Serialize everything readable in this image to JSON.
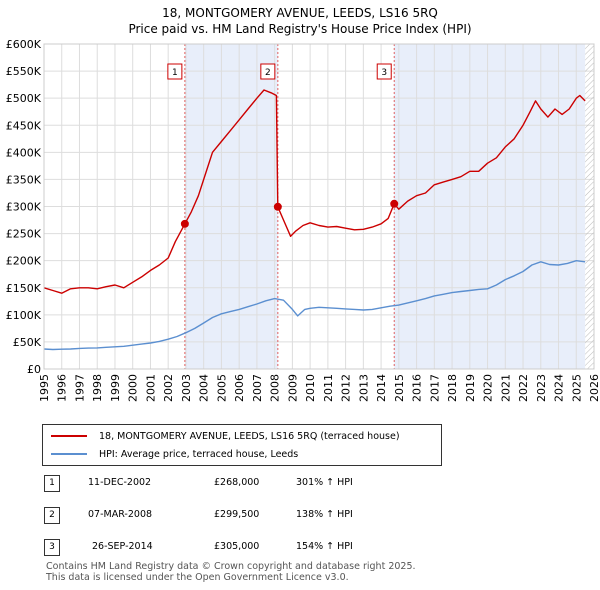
{
  "title_line1": "18, MONTGOMERY AVENUE, LEEDS, LS16 5RQ",
  "title_line2": "Price paid vs. HM Land Registry's House Price Index (HPI)",
  "chart_data": {
    "type": "line",
    "title": "18, MONTGOMERY AVENUE, LEEDS, LS16 5RQ — Price paid vs. HM Land Registry's House Price Index (HPI)",
    "xlim": [
      1995,
      2026
    ],
    "ylim": [
      0,
      600000
    ],
    "x_ticks": [
      1995,
      1996,
      1997,
      1998,
      1999,
      2000,
      2001,
      2002,
      2003,
      2004,
      2005,
      2006,
      2007,
      2008,
      2009,
      2010,
      2011,
      2012,
      2013,
      2014,
      2015,
      2016,
      2017,
      2018,
      2019,
      2020,
      2021,
      2022,
      2023,
      2024,
      2025,
      2026
    ],
    "y_ticks": [
      0,
      50000,
      100000,
      150000,
      200000,
      250000,
      300000,
      350000,
      400000,
      450000,
      500000,
      550000,
      600000
    ],
    "y_tick_labels": [
      "£0",
      "£50K",
      "£100K",
      "£150K",
      "£200K",
      "£250K",
      "£300K",
      "£350K",
      "£400K",
      "£450K",
      "£500K",
      "£550K",
      "£600K"
    ],
    "grid": true,
    "ownership_bands": [
      [
        2002.94,
        2008.18
      ],
      [
        2014.74,
        2025.5
      ]
    ],
    "hatch_from": 2025.5,
    "series": [
      {
        "name": "18, MONTGOMERY AVENUE, LEEDS, LS16 5RQ (terraced house)",
        "color": "#cc0000",
        "x": [
          1995.0,
          1995.5,
          1996.0,
          1996.5,
          1997.0,
          1997.5,
          1998.0,
          1998.5,
          1999.0,
          1999.5,
          2000.0,
          2000.5,
          2001.0,
          2001.5,
          2002.0,
          2002.4,
          2002.94,
          2003.3,
          2003.7,
          2004.0,
          2004.5,
          2005.0,
          2005.5,
          2006.0,
          2006.5,
          2007.0,
          2007.4,
          2007.8,
          2008.1,
          2008.18,
          2008.5,
          2008.9,
          2009.2,
          2009.6,
          2010.0,
          2010.5,
          2011.0,
          2011.5,
          2012.0,
          2012.5,
          2013.0,
          2013.5,
          2014.0,
          2014.4,
          2014.74,
          2015.0,
          2015.5,
          2016.0,
          2016.5,
          2017.0,
          2017.5,
          2018.0,
          2018.5,
          2019.0,
          2019.5,
          2020.0,
          2020.5,
          2021.0,
          2021.5,
          2022.0,
          2022.4,
          2022.7,
          2023.0,
          2023.4,
          2023.8,
          2024.2,
          2024.6,
          2025.0,
          2025.2,
          2025.5
        ],
        "y": [
          150000,
          145000,
          140000,
          148000,
          150000,
          150000,
          148000,
          152000,
          155000,
          150000,
          160000,
          170000,
          182000,
          192000,
          205000,
          235000,
          268000,
          290000,
          320000,
          350000,
          400000,
          420000,
          440000,
          460000,
          480000,
          500000,
          515000,
          510000,
          505000,
          299500,
          275000,
          245000,
          255000,
          265000,
          270000,
          265000,
          262000,
          263000,
          260000,
          257000,
          258000,
          262000,
          268000,
          278000,
          305000,
          295000,
          310000,
          320000,
          325000,
          340000,
          345000,
          350000,
          355000,
          365000,
          365000,
          380000,
          390000,
          410000,
          425000,
          450000,
          475000,
          495000,
          480000,
          465000,
          480000,
          470000,
          480000,
          500000,
          505000,
          495000
        ]
      },
      {
        "name": "HPI: Average price, terraced house, Leeds",
        "color": "#5b8fd0",
        "x": [
          1995.0,
          1995.5,
          1996.0,
          1996.5,
          1997.0,
          1997.5,
          1998.0,
          1998.5,
          1999.0,
          1999.5,
          2000.0,
          2000.5,
          2001.0,
          2001.5,
          2002.0,
          2002.5,
          2003.0,
          2003.5,
          2004.0,
          2004.5,
          2005.0,
          2005.5,
          2006.0,
          2006.5,
          2007.0,
          2007.5,
          2008.0,
          2008.5,
          2009.0,
          2009.3,
          2009.7,
          2010.0,
          2010.5,
          2011.0,
          2011.5,
          2012.0,
          2012.5,
          2013.0,
          2013.5,
          2014.0,
          2014.5,
          2015.0,
          2015.5,
          2016.0,
          2016.5,
          2017.0,
          2017.5,
          2018.0,
          2018.5,
          2019.0,
          2019.5,
          2020.0,
          2020.5,
          2021.0,
          2021.5,
          2022.0,
          2022.5,
          2023.0,
          2023.5,
          2024.0,
          2024.5,
          2025.0,
          2025.5
        ],
        "y": [
          37000,
          36000,
          36500,
          37000,
          38000,
          38500,
          39000,
          40000,
          41000,
          42000,
          44000,
          46000,
          48000,
          51000,
          55000,
          60000,
          67000,
          75000,
          85000,
          95000,
          102000,
          106000,
          110000,
          115000,
          120000,
          126000,
          130000,
          127000,
          110000,
          98000,
          110000,
          112000,
          114000,
          113000,
          112000,
          111000,
          110000,
          109000,
          110000,
          113000,
          116000,
          118000,
          122000,
          126000,
          130000,
          135000,
          138000,
          141000,
          143000,
          145000,
          147000,
          148000,
          155000,
          165000,
          172000,
          180000,
          192000,
          198000,
          193000,
          192000,
          195000,
          200000,
          198000
        ]
      }
    ],
    "sales": [
      {
        "label": "1",
        "x": 2002.94,
        "y": 268000
      },
      {
        "label": "2",
        "x": 2008.18,
        "y": 299500
      },
      {
        "label": "3",
        "x": 2014.74,
        "y": 305000
      }
    ]
  },
  "legend": {
    "property_label": "18, MONTGOMERY AVENUE, LEEDS, LS16 5RQ (terraced house)",
    "hpi_label": "HPI: Average price, terraced house, Leeds"
  },
  "transactions": [
    {
      "num": "1",
      "date": "11-DEC-2002",
      "price": "£268,000",
      "hpi": "301% ↑ HPI"
    },
    {
      "num": "2",
      "date": "07-MAR-2008",
      "price": "£299,500",
      "hpi": "138% ↑ HPI"
    },
    {
      "num": "3",
      "date": "26-SEP-2014",
      "price": "£305,000",
      "hpi": "154% ↑ HPI"
    }
  ],
  "footer": {
    "line1": "Contains HM Land Registry data © Crown copyright and database right 2025.",
    "line2": "This data is licensed under the Open Government Licence v3.0."
  }
}
